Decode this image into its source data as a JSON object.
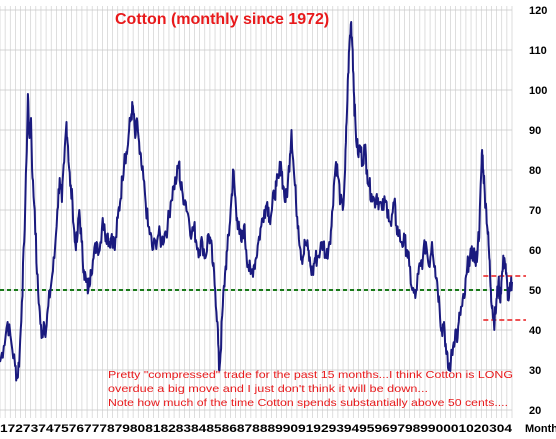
{
  "chart_data": {
    "type": "line",
    "title": "Cotton (monthly since 1972)",
    "xlabel": "Month",
    "ylabel": "",
    "ylim": [
      18,
      121
    ],
    "xlim": [
      1972.0,
      2005.9
    ],
    "y_ticks": [
      "20",
      "30",
      "40",
      "50",
      "60",
      "70",
      "80",
      "90",
      "100",
      "110",
      "120"
    ],
    "x_tick_text": "1727374757677787980818283848586878889909192939495969798990001020304",
    "grid": true,
    "colors": {
      "line": "#1a1a7e",
      "grid": "#c8c8c8",
      "reference": "#1a7a1a",
      "range": "#e8191b",
      "annotation": "#e8191b"
    },
    "reference_line": {
      "y": 50,
      "style": "dashed"
    },
    "range_lines": [
      {
        "y": 53.5,
        "x_start": 2004.0,
        "x_end": 2005.9
      },
      {
        "y": 42.5,
        "x_start": 2004.0,
        "x_end": 2005.9
      }
    ],
    "annotations": [
      "Pretty \"compressed\" trade for the past 15 months...I think Cotton is LONG",
      "overdue a big move and I just don't think it will be down...",
      "Note how much of the time Cotton spends substantially above 50 cents...."
    ],
    "series": [
      {
        "points": [
          [
            1972.0,
            32
          ],
          [
            1972.25,
            36
          ],
          [
            1972.5,
            42
          ],
          [
            1972.75,
            37
          ],
          [
            1973.0,
            31
          ],
          [
            1973.15,
            28
          ],
          [
            1973.3,
            34
          ],
          [
            1973.45,
            47
          ],
          [
            1973.6,
            62
          ],
          [
            1973.75,
            82
          ],
          [
            1973.85,
            99
          ],
          [
            1973.95,
            88
          ],
          [
            1974.05,
            93
          ],
          [
            1974.15,
            78
          ],
          [
            1974.3,
            70
          ],
          [
            1974.45,
            54
          ],
          [
            1974.6,
            46
          ],
          [
            1974.75,
            38
          ],
          [
            1974.9,
            42
          ],
          [
            1975.05,
            40
          ],
          [
            1975.2,
            46
          ],
          [
            1975.4,
            52
          ],
          [
            1975.6,
            58
          ],
          [
            1975.8,
            70
          ],
          [
            1975.95,
            78
          ],
          [
            1976.1,
            72
          ],
          [
            1976.25,
            82
          ],
          [
            1976.4,
            92
          ],
          [
            1976.5,
            86
          ],
          [
            1976.65,
            76
          ],
          [
            1976.8,
            72
          ],
          [
            1976.95,
            62
          ],
          [
            1977.1,
            62
          ],
          [
            1977.25,
            70
          ],
          [
            1977.4,
            62
          ],
          [
            1977.55,
            55
          ],
          [
            1977.7,
            52
          ],
          [
            1977.85,
            50
          ],
          [
            1978.0,
            55
          ],
          [
            1978.2,
            58
          ],
          [
            1978.4,
            62
          ],
          [
            1978.6,
            60
          ],
          [
            1978.8,
            68
          ],
          [
            1978.95,
            64
          ],
          [
            1979.1,
            64
          ],
          [
            1979.25,
            62
          ],
          [
            1979.4,
            64
          ],
          [
            1979.6,
            60
          ],
          [
            1979.8,
            68
          ],
          [
            1979.95,
            72
          ],
          [
            1980.1,
            78
          ],
          [
            1980.25,
            84
          ],
          [
            1980.4,
            84
          ],
          [
            1980.55,
            90
          ],
          [
            1980.7,
            94
          ],
          [
            1980.8,
            96
          ],
          [
            1980.95,
            88
          ],
          [
            1981.1,
            92
          ],
          [
            1981.25,
            84
          ],
          [
            1981.4,
            80
          ],
          [
            1981.6,
            74
          ],
          [
            1981.8,
            66
          ],
          [
            1981.95,
            64
          ],
          [
            1982.1,
            60
          ],
          [
            1982.3,
            62
          ],
          [
            1982.5,
            64
          ],
          [
            1982.7,
            62
          ],
          [
            1982.9,
            64
          ],
          [
            1983.1,
            66
          ],
          [
            1983.3,
            72
          ],
          [
            1983.5,
            76
          ],
          [
            1983.7,
            78
          ],
          [
            1983.85,
            82
          ],
          [
            1983.95,
            76
          ],
          [
            1984.1,
            74
          ],
          [
            1984.3,
            72
          ],
          [
            1984.5,
            68
          ],
          [
            1984.7,
            64
          ],
          [
            1984.85,
            66
          ],
          [
            1985.0,
            62
          ],
          [
            1985.2,
            60
          ],
          [
            1985.4,
            62
          ],
          [
            1985.6,
            58
          ],
          [
            1985.8,
            64
          ],
          [
            1985.95,
            62
          ],
          [
            1986.1,
            56
          ],
          [
            1986.25,
            50
          ],
          [
            1986.4,
            42
          ],
          [
            1986.5,
            30
          ],
          [
            1986.6,
            34
          ],
          [
            1986.75,
            46
          ],
          [
            1986.9,
            54
          ],
          [
            1987.05,
            60
          ],
          [
            1987.2,
            66
          ],
          [
            1987.35,
            74
          ],
          [
            1987.45,
            80
          ],
          [
            1987.55,
            74
          ],
          [
            1987.7,
            68
          ],
          [
            1987.85,
            64
          ],
          [
            1988.0,
            62
          ],
          [
            1988.15,
            66
          ],
          [
            1988.3,
            60
          ],
          [
            1988.45,
            56
          ],
          [
            1988.6,
            54
          ],
          [
            1988.8,
            56
          ],
          [
            1988.95,
            58
          ],
          [
            1989.1,
            62
          ],
          [
            1989.3,
            66
          ],
          [
            1989.5,
            70
          ],
          [
            1989.7,
            72
          ],
          [
            1989.85,
            68
          ],
          [
            1990.0,
            70
          ],
          [
            1990.15,
            74
          ],
          [
            1990.3,
            76
          ],
          [
            1990.45,
            78
          ],
          [
            1990.6,
            82
          ],
          [
            1990.75,
            76
          ],
          [
            1990.9,
            72
          ],
          [
            1991.05,
            76
          ],
          [
            1991.2,
            84
          ],
          [
            1991.3,
            90
          ],
          [
            1991.45,
            80
          ],
          [
            1991.6,
            72
          ],
          [
            1991.75,
            66
          ],
          [
            1991.9,
            60
          ],
          [
            1992.05,
            58
          ],
          [
            1992.2,
            62
          ],
          [
            1992.4,
            60
          ],
          [
            1992.55,
            56
          ],
          [
            1992.7,
            54
          ],
          [
            1992.85,
            58
          ],
          [
            1993.0,
            58
          ],
          [
            1993.2,
            60
          ],
          [
            1993.4,
            62
          ],
          [
            1993.6,
            58
          ],
          [
            1993.8,
            62
          ],
          [
            1993.95,
            66
          ],
          [
            1994.1,
            76
          ],
          [
            1994.25,
            82
          ],
          [
            1994.4,
            78
          ],
          [
            1994.55,
            72
          ],
          [
            1994.7,
            70
          ],
          [
            1994.85,
            80
          ],
          [
            1994.95,
            92
          ],
          [
            1995.05,
            104
          ],
          [
            1995.15,
            112
          ],
          [
            1995.25,
            117
          ],
          [
            1995.35,
            110
          ],
          [
            1995.45,
            98
          ],
          [
            1995.55,
            90
          ],
          [
            1995.7,
            84
          ],
          [
            1995.85,
            86
          ],
          [
            1996.0,
            82
          ],
          [
            1996.15,
            86
          ],
          [
            1996.3,
            80
          ],
          [
            1996.45,
            76
          ],
          [
            1996.6,
            74
          ],
          [
            1996.8,
            72
          ],
          [
            1996.95,
            74
          ],
          [
            1997.1,
            72
          ],
          [
            1997.3,
            70
          ],
          [
            1997.5,
            72
          ],
          [
            1997.7,
            70
          ],
          [
            1997.9,
            66
          ],
          [
            1998.1,
            72
          ],
          [
            1998.25,
            66
          ],
          [
            1998.4,
            64
          ],
          [
            1998.6,
            62
          ],
          [
            1998.8,
            62
          ],
          [
            1998.95,
            60
          ],
          [
            1999.1,
            56
          ],
          [
            1999.3,
            50
          ],
          [
            1999.5,
            48
          ],
          [
            1999.7,
            54
          ],
          [
            1999.85,
            56
          ],
          [
            2000.0,
            58
          ],
          [
            2000.2,
            62
          ],
          [
            2000.4,
            56
          ],
          [
            2000.6,
            62
          ],
          [
            2000.8,
            56
          ],
          [
            2000.95,
            52
          ],
          [
            2001.1,
            46
          ],
          [
            2001.25,
            40
          ],
          [
            2001.4,
            42
          ],
          [
            2001.55,
            34
          ],
          [
            2001.7,
            30
          ],
          [
            2001.85,
            32
          ],
          [
            2002.0,
            36
          ],
          [
            2002.15,
            40
          ],
          [
            2002.3,
            38
          ],
          [
            2002.45,
            44
          ],
          [
            2002.6,
            46
          ],
          [
            2002.75,
            48
          ],
          [
            2002.9,
            54
          ],
          [
            2003.05,
            58
          ],
          [
            2003.2,
            58
          ],
          [
            2003.35,
            60
          ],
          [
            2003.5,
            56
          ],
          [
            2003.65,
            62
          ],
          [
            2003.75,
            66
          ],
          [
            2003.85,
            78
          ],
          [
            2003.92,
            85
          ],
          [
            2004.0,
            80
          ],
          [
            2004.1,
            74
          ],
          [
            2004.2,
            70
          ],
          [
            2004.3,
            64
          ],
          [
            2004.4,
            58
          ],
          [
            2004.5,
            50
          ],
          [
            2004.6,
            46
          ],
          [
            2004.7,
            42
          ],
          [
            2004.8,
            44
          ],
          [
            2004.9,
            48
          ],
          [
            2005.0,
            52
          ],
          [
            2005.1,
            48
          ],
          [
            2005.2,
            52
          ],
          [
            2005.3,
            56
          ],
          [
            2005.4,
            58
          ],
          [
            2005.5,
            54
          ],
          [
            2005.6,
            50
          ],
          [
            2005.7,
            48
          ],
          [
            2005.8,
            50
          ],
          [
            2005.9,
            52
          ]
        ]
      }
    ]
  }
}
